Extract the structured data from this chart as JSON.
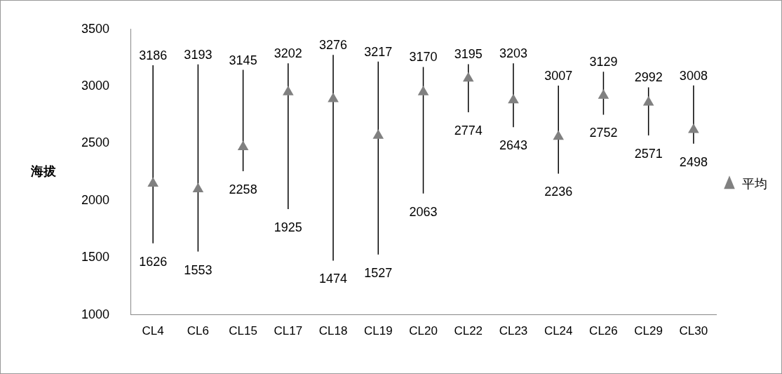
{
  "chart_data": {
    "type": "scatter",
    "ylabel": "海拔",
    "categories": [
      "CL4",
      "CL6",
      "CL15",
      "CL17",
      "CL18",
      "CL19",
      "CL20",
      "CL22",
      "CL23",
      "CL24",
      "CL26",
      "CL29",
      "CL30"
    ],
    "series": [
      {
        "name": "平均",
        "color": "#808080",
        "values": [
          2150,
          2100,
          2470,
          2950,
          2890,
          2570,
          2950,
          3070,
          2880,
          2560,
          2920,
          2860,
          2620
        ],
        "errors": [
          [
            1626,
            3186
          ],
          [
            1553,
            3193
          ],
          [
            2258,
            3145
          ],
          [
            1925,
            3202
          ],
          [
            1474,
            3276
          ],
          [
            1527,
            3217
          ],
          [
            2063,
            3170
          ],
          [
            2774,
            3195
          ],
          [
            2643,
            3203
          ],
          [
            2236,
            3007
          ],
          [
            2752,
            3129
          ],
          [
            2571,
            2992
          ],
          [
            2498,
            3008
          ]
        ]
      }
    ],
    "annotations": [
      {
        "text": "3186",
        "x": "CL4",
        "y": 3186
      },
      {
        "text": "1626",
        "x": "CL4",
        "y": 1626
      },
      {
        "text": "3193",
        "x": "CL6",
        "y": 3193
      },
      {
        "text": "1553",
        "x": "CL6",
        "y": 1553
      },
      {
        "text": "3145",
        "x": "CL15",
        "y": 3145
      },
      {
        "text": "2258",
        "x": "CL15",
        "y": 2258
      },
      {
        "text": "3202",
        "x": "CL17",
        "y": 3202
      },
      {
        "text": "1925",
        "x": "CL17",
        "y": 1925
      },
      {
        "text": "3276",
        "x": "CL18",
        "y": 3276
      },
      {
        "text": "1474",
        "x": "CL18",
        "y": 1474
      },
      {
        "text": "3217",
        "x": "CL19",
        "y": 3217
      },
      {
        "text": "1527",
        "x": "CL19",
        "y": 1527
      },
      {
        "text": "3170",
        "x": "CL20",
        "y": 3170
      },
      {
        "text": "2063",
        "x": "CL20",
        "y": 2063
      },
      {
        "text": "3195",
        "x": "CL22",
        "y": 3195
      },
      {
        "text": "2774",
        "x": "CL22",
        "y": 2774
      },
      {
        "text": "3203",
        "x": "CL23",
        "y": 3203
      },
      {
        "text": "2643",
        "x": "CL23",
        "y": 2643
      },
      {
        "text": "3007",
        "x": "CL24",
        "y": 3007
      },
      {
        "text": "2236",
        "x": "CL24",
        "y": 2236
      },
      {
        "text": "3129",
        "x": "CL26",
        "y": 3129
      },
      {
        "text": "2752",
        "x": "CL26",
        "y": 2752
      },
      {
        "text": "2992",
        "x": "CL29",
        "y": 2992
      },
      {
        "text": "2571",
        "x": "CL29",
        "y": 2571
      },
      {
        "text": "3008",
        "x": "CL30",
        "y": 3008
      },
      {
        "text": "2498",
        "x": "CL30",
        "y": 2498
      }
    ],
    "ylim": [
      1000,
      3500
    ],
    "yticks": [
      1000,
      1500,
      2000,
      2500,
      3000,
      3500
    ],
    "grid": false,
    "legend": "right",
    "marker": "triangle"
  }
}
